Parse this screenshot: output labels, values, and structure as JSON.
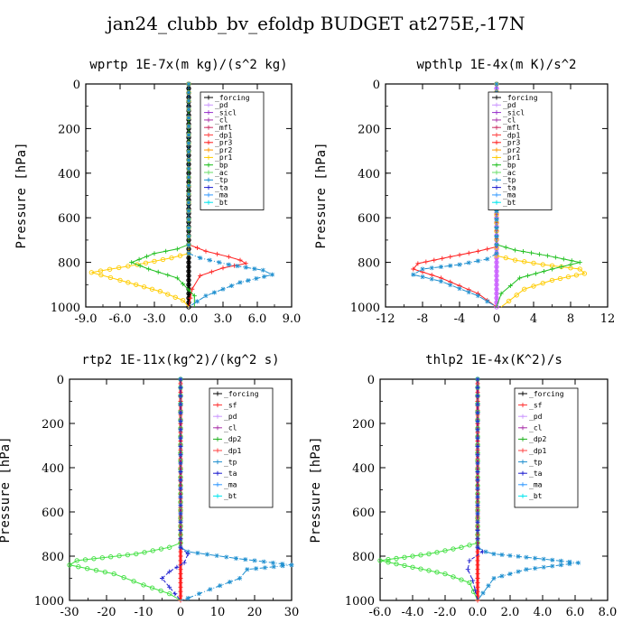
{
  "page_title": "jan24_clubb_bv_efoldp  BUDGET at275E,-17N",
  "chart_data": [
    {
      "type": "line",
      "title": "wprtp  1E-7x(m kg)/(s^2 kg)",
      "ylabel": "Pressure [hPa]",
      "xlim": [
        -9.0,
        9.0
      ],
      "ylim": [
        1000,
        0
      ],
      "xticks": [
        "-9.0",
        "-6.0",
        "-3.0",
        "0.0",
        "3.0",
        "6.0",
        "9.0"
      ],
      "yticks": [
        "0",
        "200",
        "400",
        "600",
        "800",
        "1000"
      ],
      "legend": [
        "_forcing",
        "_pd",
        "_sicl",
        "_cl",
        "_mfl",
        "_dp1",
        "_pr3",
        "_pr2",
        "_pr1",
        "_bp",
        "_ac",
        "_tp",
        "_ta",
        "_ma",
        "_bt"
      ],
      "series": [
        {
          "name": "_forcing",
          "color": "#000000",
          "style": "solid",
          "marker": "circle",
          "x": [
            0,
            0
          ],
          "y": [
            0,
            1000
          ]
        },
        {
          "name": "_pr3",
          "color": "#ff2020",
          "style": "solid",
          "marker": "plus",
          "x": [
            0,
            0,
            1.5,
            3.5,
            4.5,
            5.0,
            3.0,
            1.0,
            0.3,
            0.0
          ],
          "y": [
            0,
            720,
            750,
            775,
            790,
            805,
            825,
            860,
            920,
            1000
          ]
        },
        {
          "name": "_pr1",
          "color": "#ffcc00",
          "style": "solid",
          "marker": "circle",
          "x": [
            0,
            0,
            -1.5,
            -4.5,
            -8.5,
            -6.0,
            -2.5,
            -0.5,
            0.0
          ],
          "y": [
            0,
            760,
            780,
            810,
            845,
            880,
            930,
            970,
            1000
          ]
        },
        {
          "name": "_bp",
          "color": "#20c020",
          "style": "solid",
          "marker": "plus",
          "x": [
            0,
            0,
            -1.0,
            -3.0,
            -5.0,
            -3.5,
            -1.0,
            0.5,
            0.5
          ],
          "y": [
            0,
            720,
            740,
            760,
            800,
            830,
            870,
            950,
            1000
          ]
        },
        {
          "name": "_tp",
          "color": "#2090d0",
          "style": "dashdot",
          "marker": "star",
          "x": [
            0,
            0,
            1.0,
            3.5,
            6.5,
            7.3,
            4.5,
            1.5,
            0.0
          ],
          "y": [
            0,
            760,
            780,
            810,
            835,
            855,
            890,
            950,
            1000
          ]
        }
      ]
    },
    {
      "type": "line",
      "title": "wpthlp  1E-4x(m K)/s^2",
      "ylabel": "Pressure [hPa]",
      "xlim": [
        -12,
        12
      ],
      "ylim": [
        1000,
        0
      ],
      "xticks": [
        "-12",
        "-8",
        "-4",
        "0",
        "4",
        "8",
        "12"
      ],
      "yticks": [
        "0",
        "200",
        "400",
        "600",
        "800",
        "1000"
      ],
      "legend": [
        "_forcing",
        "_pd",
        "_sicl",
        "_cl",
        "_mfl",
        "_dp1",
        "_pr3",
        "_pr2",
        "_pr1",
        "_bp",
        "_ac",
        "_tp",
        "_ta",
        "_ma",
        "_bt"
      ],
      "series": [
        {
          "name": "_forcing",
          "color": "#cc66ff",
          "style": "solid",
          "marker": "circle",
          "x": [
            0,
            0
          ],
          "y": [
            0,
            1000
          ]
        },
        {
          "name": "_pr3",
          "color": "#ff2020",
          "style": "solid",
          "marker": "plus",
          "x": [
            0,
            0,
            -2.0,
            -5.0,
            -8.5,
            -9.0,
            -6.0,
            -2.0,
            0.0
          ],
          "y": [
            0,
            730,
            750,
            775,
            805,
            830,
            870,
            940,
            1000
          ]
        },
        {
          "name": "_pr1",
          "color": "#ffcc00",
          "style": "solid",
          "marker": "circle",
          "x": [
            0,
            0,
            2.0,
            5.0,
            9.0,
            9.5,
            6.0,
            3.0,
            0.5
          ],
          "y": [
            0,
            770,
            790,
            810,
            830,
            850,
            880,
            920,
            1000
          ]
        },
        {
          "name": "_bp",
          "color": "#20c020",
          "style": "solid",
          "marker": "plus",
          "x": [
            0,
            0,
            2.0,
            5.5,
            9.0,
            6.0,
            2.5,
            0.5,
            0.0
          ],
          "y": [
            0,
            720,
            745,
            770,
            800,
            830,
            870,
            940,
            1000
          ]
        },
        {
          "name": "_tp",
          "color": "#2090d0",
          "style": "dashdot",
          "marker": "star",
          "x": [
            0,
            0,
            -1.0,
            -4.0,
            -8.0,
            -9.0,
            -6.0,
            -2.0,
            0.0
          ],
          "y": [
            0,
            760,
            785,
            810,
            830,
            855,
            885,
            950,
            1000
          ]
        }
      ]
    },
    {
      "type": "line",
      "title": "rtp2  1E-11x(kg^2)/(kg^2 s)",
      "ylabel": "Pressure [hPa]",
      "xlim": [
        -30,
        30
      ],
      "ylim": [
        1000,
        0
      ],
      "xticks": [
        "-30",
        "-20",
        "-10",
        "0",
        "10",
        "20",
        "30"
      ],
      "yticks": [
        "0",
        "200",
        "400",
        "600",
        "800",
        "1000"
      ],
      "legend": [
        "_forcing",
        "_sf",
        "_pd",
        "_cl",
        "_dp2",
        "_dp1",
        "_tp",
        "_ta",
        "_ma",
        "_bt"
      ],
      "series": [
        {
          "name": "_forcing",
          "color": "#ff2020",
          "style": "solid",
          "marker": "plus",
          "x": [
            0,
            0
          ],
          "y": [
            0,
            1000
          ]
        },
        {
          "name": "_dp1",
          "color": "#40e040",
          "style": "solid",
          "marker": "circle",
          "x": [
            0,
            0,
            -3.0,
            -12.0,
            -28.0,
            -30.0,
            -18.0,
            -10.0,
            -3.0,
            0.0
          ],
          "y": [
            0,
            740,
            760,
            790,
            820,
            840,
            880,
            930,
            970,
            1000
          ]
        },
        {
          "name": "_tp",
          "color": "#2090d0",
          "style": "dashdot",
          "marker": "star",
          "x": [
            0,
            0,
            2.0,
            15.0,
            30.0,
            18.0,
            16.0,
            8.0,
            2.0,
            0.0
          ],
          "y": [
            0,
            760,
            780,
            810,
            840,
            860,
            900,
            950,
            990,
            1000
          ]
        },
        {
          "name": "_ta",
          "color": "#2020d0",
          "style": "dashed",
          "marker": "plus",
          "x": [
            0,
            0,
            2.0,
            1.0,
            -3.0,
            -5.0,
            -3.0,
            0.0
          ],
          "y": [
            0,
            760,
            790,
            830,
            870,
            900,
            940,
            1000
          ]
        }
      ]
    },
    {
      "type": "line",
      "title": "thlp2  1E-4x(K^2)/s",
      "ylabel": "Pressure [hPa]",
      "xlim": [
        -6.0,
        8.0
      ],
      "ylim": [
        1000,
        0
      ],
      "xticks": [
        "-6.0",
        "-4.0",
        "-2.0",
        "0.0",
        "2.0",
        "4.0",
        "6.0",
        "8.0"
      ],
      "yticks": [
        "0",
        "200",
        "400",
        "600",
        "800",
        "1000"
      ],
      "legend": [
        "_forcing",
        "_sf",
        "_pd",
        "_cl",
        "_dp2",
        "_dp1",
        "_tp",
        "_ta",
        "_ma",
        "_bt"
      ],
      "series": [
        {
          "name": "_forcing",
          "color": "#ff2020",
          "style": "solid",
          "marker": "plus",
          "x": [
            0,
            0
          ],
          "y": [
            0,
            1000
          ]
        },
        {
          "name": "_dp1",
          "color": "#40e040",
          "style": "solid",
          "marker": "circle",
          "x": [
            0,
            0,
            -1.0,
            -3.0,
            -6.0,
            -4.0,
            -2.0,
            -0.5,
            0.0
          ],
          "y": [
            0,
            740,
            760,
            790,
            820,
            850,
            880,
            920,
            1000
          ]
        },
        {
          "name": "_tp",
          "color": "#2090d0",
          "style": "dashdot",
          "marker": "star",
          "x": [
            0,
            0,
            0.5,
            1.0,
            3.0,
            6.2,
            3.0,
            1.0,
            0.0
          ],
          "y": [
            0,
            760,
            780,
            790,
            805,
            830,
            860,
            900,
            1000
          ]
        },
        {
          "name": "_ta",
          "color": "#2020d0",
          "style": "dashed",
          "marker": "plus",
          "x": [
            0,
            0,
            0.3,
            -0.5,
            -0.6,
            -0.3,
            0.0
          ],
          "y": [
            0,
            760,
            780,
            820,
            860,
            910,
            1000
          ]
        }
      ]
    }
  ]
}
